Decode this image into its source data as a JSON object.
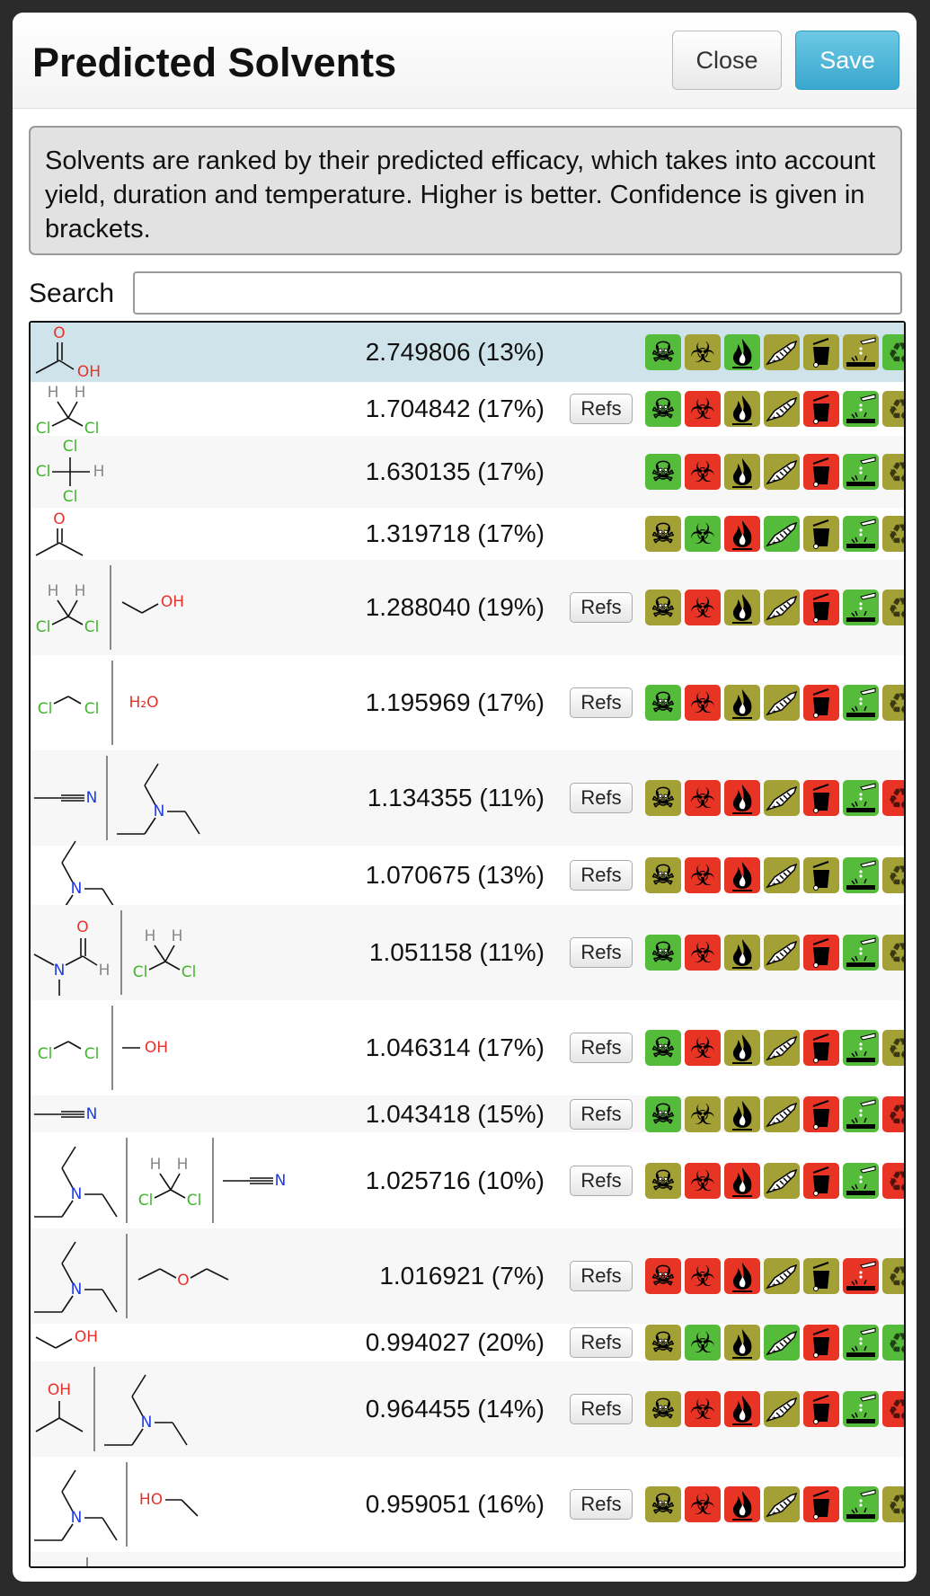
{
  "header": {
    "title": "Predicted Solvents",
    "close_label": "Close",
    "save_label": "Save"
  },
  "info_text": "Solvents are ranked by their predicted efficacy, which takes into account yield, duration and temperature. Higher is better. Confidence is given in brackets.",
  "search": {
    "label": "Search",
    "value": "",
    "placeholder": ""
  },
  "refs_label": "Refs",
  "hazard_icons": [
    "skull-icon",
    "biohazard-icon",
    "flame-icon",
    "dead-fish-icon",
    "trash-bin-icon",
    "corrosive-icon",
    "recycle-icon"
  ],
  "colors": {
    "green": "#55bb3a",
    "olive": "#a3a035",
    "red": "#e83424",
    "selected_row": "#cfe4ea"
  },
  "rows": [
    {
      "score": "2.749806 (13%)",
      "refs": false,
      "selected": true,
      "structures": [
        "acetic-acid"
      ],
      "hazards": [
        "green",
        "olive",
        "green",
        "olive",
        "olive",
        "olive",
        "green"
      ]
    },
    {
      "score": "1.704842 (17%)",
      "refs": true,
      "structures": [
        "dichloromethane-h"
      ],
      "hazards": [
        "green",
        "red",
        "olive",
        "olive",
        "red",
        "green",
        "olive"
      ]
    },
    {
      "score": "1.630135 (17%)",
      "refs": false,
      "structures": [
        "chloroform"
      ],
      "hazards": [
        "green",
        "red",
        "olive",
        "olive",
        "red",
        "green",
        "olive"
      ]
    },
    {
      "score": "1.319718 (17%)",
      "refs": false,
      "structures": [
        "acetone"
      ],
      "hazards": [
        "olive",
        "green",
        "red",
        "green",
        "olive",
        "green",
        "olive"
      ]
    },
    {
      "score": "1.288040 (19%)",
      "refs": true,
      "structures": [
        "dichloromethane-h",
        "ethanol"
      ],
      "hazards": [
        "olive",
        "red",
        "olive",
        "olive",
        "red",
        "green",
        "olive"
      ]
    },
    {
      "score": "1.195969 (17%)",
      "refs": true,
      "structures": [
        "dichloromethane",
        "water"
      ],
      "hazards": [
        "green",
        "red",
        "olive",
        "olive",
        "red",
        "green",
        "olive"
      ]
    },
    {
      "score": "1.134355 (11%)",
      "refs": true,
      "structures": [
        "acetonitrile",
        "triethylamine"
      ],
      "hazards": [
        "olive",
        "red",
        "red",
        "olive",
        "red",
        "green",
        "red"
      ]
    },
    {
      "score": "1.070675 (13%)",
      "refs": true,
      "structures": [
        "triethylamine"
      ],
      "hazards": [
        "olive",
        "red",
        "red",
        "olive",
        "olive",
        "green",
        "olive"
      ]
    },
    {
      "score": "1.051158 (11%)",
      "refs": true,
      "structures": [
        "dmf",
        "dichloromethane-h"
      ],
      "hazards": [
        "green",
        "red",
        "olive",
        "olive",
        "red",
        "green",
        "olive"
      ]
    },
    {
      "score": "1.046314 (17%)",
      "refs": true,
      "structures": [
        "dichloromethane",
        "methanol"
      ],
      "hazards": [
        "green",
        "red",
        "olive",
        "olive",
        "red",
        "green",
        "olive"
      ]
    },
    {
      "score": "1.043418 (15%)",
      "refs": true,
      "structures": [
        "acetonitrile"
      ],
      "hazards": [
        "green",
        "olive",
        "olive",
        "olive",
        "red",
        "green",
        "red"
      ]
    },
    {
      "score": "1.025716 (10%)",
      "refs": true,
      "structures": [
        "triethylamine",
        "dichloromethane-h",
        "acetonitrile"
      ],
      "hazards": [
        "olive",
        "red",
        "red",
        "olive",
        "red",
        "green",
        "red"
      ]
    },
    {
      "score": "1.016921 (7%)",
      "refs": true,
      "structures": [
        "triethylamine",
        "diethyl-ether"
      ],
      "hazards": [
        "red",
        "red",
        "red",
        "olive",
        "olive",
        "red",
        "olive"
      ]
    },
    {
      "score": "0.994027 (20%)",
      "refs": true,
      "structures": [
        "ethanol"
      ],
      "hazards": [
        "olive",
        "green",
        "olive",
        "green",
        "red",
        "green",
        "green"
      ]
    },
    {
      "score": "0.964455 (14%)",
      "refs": true,
      "structures": [
        "isopropanol",
        "triethylamine"
      ],
      "hazards": [
        "olive",
        "red",
        "red",
        "olive",
        "red",
        "green",
        "red"
      ]
    },
    {
      "score": "0.959051 (16%)",
      "refs": true,
      "structures": [
        "triethylamine",
        "ethanol-reversed"
      ],
      "hazards": [
        "olive",
        "red",
        "red",
        "olive",
        "red",
        "green",
        "olive"
      ]
    }
  ]
}
